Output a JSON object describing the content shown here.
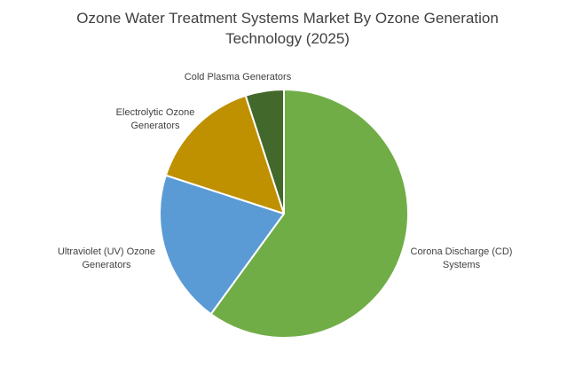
{
  "chart_data": {
    "type": "pie",
    "title_lines": [
      "Ozone Water Treatment Systems Market By Ozone Generation",
      "Technology (2025)"
    ],
    "slices": [
      {
        "label": "Corona Discharge (CD) Systems",
        "value": 60,
        "color": "#70AD47"
      },
      {
        "label": "Ultraviolet (UV) Ozone Generators",
        "value": 20,
        "color": "#5B9BD5"
      },
      {
        "label": "Electrolytic Ozone Generators",
        "value": 15,
        "color": "#BF9000"
      },
      {
        "label": "Cold Plasma Generators",
        "value": 5,
        "color": "#43682B"
      }
    ],
    "start_angle": "12 o'clock",
    "direction": "clockwise",
    "legend": "none",
    "data_labels": "outside slices"
  }
}
